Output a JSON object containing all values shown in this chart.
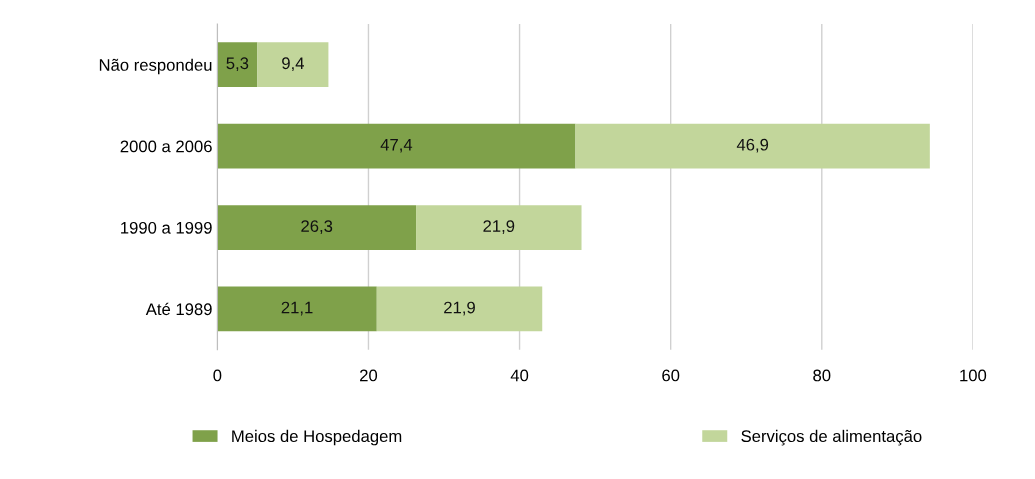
{
  "chart_data": {
    "type": "bar",
    "orientation": "horizontal",
    "stacked": true,
    "categories": [
      "Não respondeu",
      "2000 a 2006",
      "1990 a 1999",
      "Até 1989"
    ],
    "series": [
      {
        "name": "Meios de Hospedagem",
        "color": "#7fa14a",
        "values": [
          5.3,
          47.4,
          26.3,
          21.1
        ],
        "value_labels": [
          "5,3",
          "47,4",
          "26,3",
          "21,1"
        ]
      },
      {
        "name": "Serviços de alimentação",
        "color": "#c2d69b",
        "values": [
          9.4,
          46.9,
          21.9,
          21.9
        ],
        "value_labels": [
          "9,4",
          "46,9",
          "21,9",
          "21,9"
        ]
      }
    ],
    "xlim": [
      0,
      100
    ],
    "xticks": [
      0,
      20,
      40,
      60,
      80,
      100
    ],
    "grid": "x",
    "legend": "bottom"
  }
}
